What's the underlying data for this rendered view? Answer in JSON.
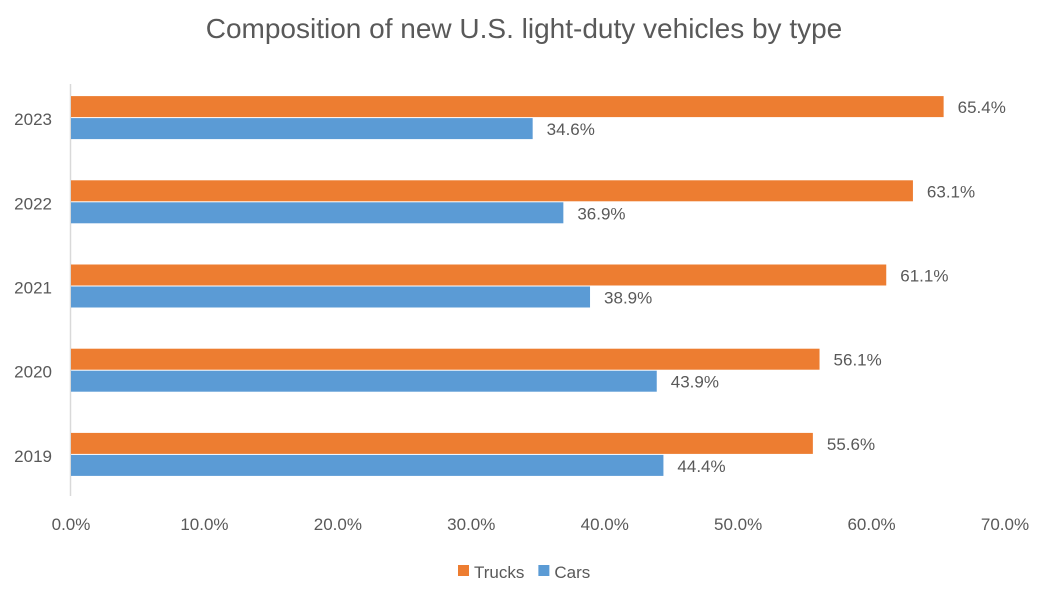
{
  "chart_data": {
    "type": "bar",
    "orientation": "horizontal",
    "title": "Composition of new U.S. light-duty vehicles by type",
    "categories": [
      "2023",
      "2022",
      "2021",
      "2020",
      "2019"
    ],
    "series": [
      {
        "name": "Trucks",
        "color": "#ED7D31",
        "values": [
          65.4,
          63.1,
          61.1,
          56.1,
          55.6
        ],
        "labels": [
          "65.4%",
          "63.1%",
          "61.1%",
          "56.1%",
          "55.6%"
        ]
      },
      {
        "name": "Cars",
        "color": "#5B9BD5",
        "values": [
          34.6,
          36.9,
          38.9,
          43.9,
          44.4
        ],
        "labels": [
          "34.6%",
          "36.9%",
          "38.9%",
          "43.9%",
          "44.4%"
        ]
      }
    ],
    "xlim": [
      0,
      70
    ],
    "xticks": [
      "0.0%",
      "10.0%",
      "20.0%",
      "30.0%",
      "40.0%",
      "50.0%",
      "60.0%",
      "70.0%"
    ],
    "grid": false,
    "legend": "bottom",
    "xlabel": "",
    "ylabel": ""
  }
}
